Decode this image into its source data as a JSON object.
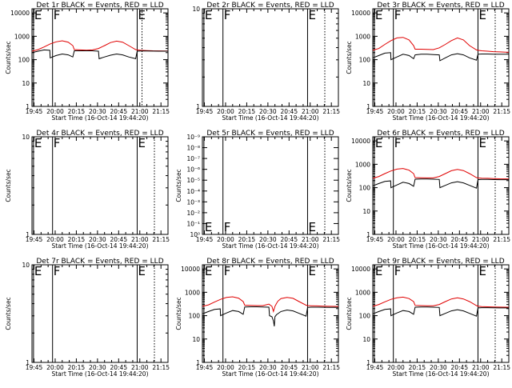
{
  "chart_data": [
    {
      "type": "line",
      "panel": 1,
      "title": "Det 1r BLACK = Events, RED = LLD",
      "xlabel": "Start Time (16-Oct-14 19:44:20)",
      "ylabel": "Counts/sec",
      "x_ticks": [
        "19:45",
        "20:00",
        "20:15",
        "20:30",
        "20:45",
        "21:00",
        "21:15"
      ],
      "xlim_min": [
        0,
        45
      ],
      "y_scale": "log",
      "ylim": [
        1,
        15000
      ],
      "y_ticks": [
        "1",
        "10",
        "100",
        "1000",
        "10000"
      ],
      "markers": [
        {
          "label": "E",
          "t_min": 0.5,
          "style": "solid"
        },
        {
          "label": "F",
          "t_min": 6.8,
          "style": "solid"
        },
        {
          "label": "E",
          "t_min": 34.8,
          "style": "solid"
        },
        {
          "label": "",
          "t_min": 36.4,
          "style": "dotted"
        }
      ],
      "series": [
        {
          "color": "#e00000",
          "x": [
            0,
            2,
            4,
            6,
            8,
            10,
            12,
            13.5,
            14,
            16,
            18,
            20,
            22,
            24,
            26,
            28,
            30,
            32,
            34.3,
            34.8,
            36,
            38,
            40,
            42,
            44,
            45
          ],
          "y": [
            230,
            270,
            350,
            470,
            580,
            640,
            560,
            400,
            270,
            260,
            255,
            260,
            300,
            400,
            540,
            620,
            560,
            400,
            270,
            260,
            250,
            245,
            240,
            238,
            236,
            235
          ]
        },
        {
          "color": "#000000",
          "x": [
            0,
            2,
            4,
            5.9,
            6,
            8,
            10,
            12,
            13.5,
            14,
            16,
            18,
            20,
            22,
            22.2,
            24,
            26,
            28,
            30,
            32,
            34.3,
            34.8,
            36,
            38,
            40,
            42,
            44,
            45
          ],
          "y": [
            200,
            230,
            260,
            250,
            120,
            150,
            175,
            160,
            130,
            240,
            240,
            240,
            240,
            230,
            110,
            130,
            155,
            175,
            160,
            130,
            110,
            230,
            235,
            235,
            232,
            230,
            230,
            230
          ]
        }
      ]
    },
    {
      "type": "line",
      "panel": 2,
      "title": "Det 2r BLACK = Events, RED = LLD",
      "xlabel": "Start Time (16-Oct-14 19:44:20)",
      "ylabel": "",
      "x_ticks": [
        "19:45",
        "20:00",
        "20:15",
        "20:30",
        "20:45",
        "21:00",
        "21:15"
      ],
      "xlim_min": [
        0,
        45
      ],
      "y_scale": "log",
      "ylim": [
        1,
        10
      ],
      "y_ticks": [
        "1",
        "10"
      ],
      "markers": [
        {
          "label": "E",
          "t_min": 0.5,
          "style": "solid"
        },
        {
          "label": "F",
          "t_min": 6.8,
          "style": "solid"
        },
        {
          "label": "E",
          "t_min": 34.8,
          "style": "solid"
        },
        {
          "label": "",
          "t_min": 40.5,
          "style": "dotted"
        }
      ],
      "series": []
    },
    {
      "type": "line",
      "panel": 3,
      "title": "Det 3r BLACK = Events, RED = LLD",
      "xlabel": "Start Time (16-Oct-14 19:44:20)",
      "ylabel": "Counts/sec",
      "x_ticks": [
        "19:45",
        "20:00",
        "20:15",
        "20:30",
        "20:45",
        "21:00",
        "21:15"
      ],
      "xlim_min": [
        0,
        45
      ],
      "y_scale": "log",
      "ylim": [
        1,
        15000
      ],
      "y_ticks": [
        "1",
        "10",
        "100",
        "1000",
        "10000"
      ],
      "markers": [
        {
          "label": "E",
          "t_min": 0.5,
          "style": "solid"
        },
        {
          "label": "F",
          "t_min": 6.8,
          "style": "solid"
        },
        {
          "label": "E",
          "t_min": 34.8,
          "style": "solid"
        },
        {
          "label": "",
          "t_min": 40.5,
          "style": "dotted"
        }
      ],
      "series": [
        {
          "color": "#e00000",
          "x": [
            0,
            2,
            4,
            6,
            8,
            10,
            12,
            13.5,
            14,
            16,
            18,
            20,
            22,
            24,
            26,
            28,
            30,
            32,
            34.3,
            34.8,
            36,
            38,
            40,
            42,
            44,
            45
          ],
          "y": [
            250,
            300,
            450,
            650,
            850,
            900,
            700,
            400,
            280,
            280,
            275,
            270,
            320,
            450,
            650,
            850,
            700,
            400,
            260,
            250,
            240,
            230,
            220,
            215,
            210,
            210
          ]
        },
        {
          "color": "#000000",
          "x": [
            0,
            2,
            4,
            5.9,
            6,
            8,
            10,
            12,
            13.5,
            14,
            16,
            18,
            20,
            22,
            22.2,
            24,
            26,
            28,
            30,
            32,
            34.3,
            34.8,
            36,
            38,
            40,
            42,
            44,
            45
          ],
          "y": [
            120,
            150,
            190,
            200,
            100,
            130,
            170,
            150,
            110,
            160,
            170,
            170,
            165,
            160,
            90,
            120,
            160,
            180,
            160,
            120,
            95,
            170,
            175,
            175,
            172,
            170,
            170,
            170
          ]
        }
      ]
    },
    {
      "type": "line",
      "panel": 4,
      "title": "Det 4r BLACK = Events, RED = LLD",
      "xlabel": "Start Time (16-Oct-14 19:44:20)",
      "ylabel": "Counts/sec",
      "x_ticks": [
        "19:45",
        "20:00",
        "20:15",
        "20:30",
        "20:45",
        "21:00",
        "21:15"
      ],
      "xlim_min": [
        0,
        45
      ],
      "y_scale": "log",
      "ylim": [
        1,
        10
      ],
      "y_ticks": [
        "1",
        "10"
      ],
      "markers": [
        {
          "label": "E",
          "t_min": 0.5,
          "style": "solid"
        },
        {
          "label": "F",
          "t_min": 6.8,
          "style": "solid"
        },
        {
          "label": "E",
          "t_min": 34.8,
          "style": "solid"
        },
        {
          "label": "",
          "t_min": 40.5,
          "style": "dotted"
        }
      ],
      "series": []
    },
    {
      "type": "line",
      "panel": 5,
      "title": "Det 5r BLACK = Events, RED = LLD",
      "xlabel": "Start Time (16-Oct-14 19:44:20)",
      "ylabel": "Counts/sec",
      "x_ticks": [
        "19:45",
        "20:00",
        "20:15",
        "20:30",
        "20:45",
        "21:00",
        "21:15"
      ],
      "xlim_min": [
        0,
        45
      ],
      "y_scale": "log",
      "ylim": [
        1,
        1e-09
      ],
      "y_ticks": [
        "10⁰",
        "10⁻¹",
        "10⁻²",
        "10⁻³",
        "10⁻⁴",
        "10⁻⁵",
        "10⁻⁶",
        "10⁻⁷",
        "10⁻⁸",
        "10⁻⁹"
      ],
      "markers": [
        {
          "label": "E",
          "t_min": 0.5,
          "style": "solid"
        },
        {
          "label": "F",
          "t_min": 6.8,
          "style": "solid"
        },
        {
          "label": "E",
          "t_min": 34.8,
          "style": "solid"
        },
        {
          "label": "",
          "t_min": 40.5,
          "style": "dotted"
        }
      ],
      "series": []
    },
    {
      "type": "line",
      "panel": 6,
      "title": "Det 6r BLACK = Events, RED = LLD",
      "xlabel": "Start Time (16-Oct-14 19:44:20)",
      "ylabel": "Counts/sec",
      "x_ticks": [
        "19:45",
        "20:00",
        "20:15",
        "20:30",
        "20:45",
        "21:00",
        "21:15"
      ],
      "xlim_min": [
        0,
        45
      ],
      "y_scale": "log",
      "ylim": [
        1,
        15000
      ],
      "y_ticks": [
        "1",
        "10",
        "100",
        "1000",
        "10000"
      ],
      "markers": [
        {
          "label": "E",
          "t_min": 0.5,
          "style": "solid"
        },
        {
          "label": "F",
          "t_min": 6.8,
          "style": "solid"
        },
        {
          "label": "E",
          "t_min": 34.8,
          "style": "solid"
        },
        {
          "label": "",
          "t_min": 40.5,
          "style": "dotted"
        }
      ],
      "series": [
        {
          "color": "#e00000",
          "x": [
            0,
            2,
            4,
            6,
            8,
            10,
            12,
            13.5,
            14,
            16,
            18,
            20,
            22,
            24,
            26,
            28,
            30,
            32,
            34.3,
            34.8,
            36,
            38,
            40,
            42,
            44,
            45
          ],
          "y": [
            250,
            300,
            400,
            520,
            620,
            660,
            560,
            400,
            270,
            265,
            260,
            260,
            300,
            400,
            530,
            600,
            540,
            400,
            270,
            260,
            255,
            250,
            245,
            240,
            238,
            235
          ]
        },
        {
          "color": "#000000",
          "x": [
            0,
            2,
            4,
            5.9,
            6,
            8,
            10,
            12,
            13.5,
            14,
            16,
            18,
            20,
            22,
            22.2,
            24,
            26,
            28,
            30,
            32,
            34.3,
            34.8,
            36,
            38,
            40,
            42,
            44,
            45
          ],
          "y": [
            120,
            150,
            185,
            195,
            100,
            130,
            170,
            150,
            115,
            230,
            235,
            235,
            230,
            225,
            100,
            125,
            160,
            180,
            160,
            125,
            95,
            220,
            225,
            225,
            222,
            220,
            220,
            220
          ]
        }
      ]
    },
    {
      "type": "line",
      "panel": 7,
      "title": "Det 7r BLACK = Events, RED = LLD",
      "xlabel": "Start Time (16-Oct-14 19:44:20)",
      "ylabel": "Counts/sec",
      "x_ticks": [
        "19:45",
        "20:00",
        "20:15",
        "20:30",
        "20:45",
        "21:00",
        "21:15"
      ],
      "xlim_min": [
        0,
        45
      ],
      "y_scale": "log",
      "ylim": [
        1,
        10
      ],
      "y_ticks": [
        "1",
        "10"
      ],
      "markers": [
        {
          "label": "E",
          "t_min": 0.5,
          "style": "solid"
        },
        {
          "label": "F",
          "t_min": 6.8,
          "style": "solid"
        },
        {
          "label": "E",
          "t_min": 34.8,
          "style": "solid"
        },
        {
          "label": "",
          "t_min": 40.5,
          "style": "dotted"
        }
      ],
      "series": []
    },
    {
      "type": "line",
      "panel": 8,
      "title": "Det 8r BLACK = Events, RED = LLD",
      "xlabel": "Start Time (16-Oct-14 19:44:20)",
      "ylabel": "Counts/sec",
      "x_ticks": [
        "19:45",
        "20:00",
        "20:15",
        "20:30",
        "20:45",
        "21:00",
        "21:15"
      ],
      "xlim_min": [
        0,
        45
      ],
      "y_scale": "log",
      "ylim": [
        1,
        15000
      ],
      "y_ticks": [
        "1",
        "10",
        "100",
        "1000",
        "10000"
      ],
      "markers": [
        {
          "label": "E",
          "t_min": 0.5,
          "style": "solid"
        },
        {
          "label": "F",
          "t_min": 6.8,
          "style": "solid"
        },
        {
          "label": "E",
          "t_min": 34.8,
          "style": "solid"
        },
        {
          "label": "",
          "t_min": 40.5,
          "style": "dotted"
        }
      ],
      "series": [
        {
          "color": "#e00000",
          "x": [
            0,
            2,
            4,
            6,
            8,
            10,
            12,
            13.5,
            14,
            16,
            18,
            20,
            22,
            23,
            23.5,
            24,
            24.5,
            25,
            26,
            28,
            30,
            32,
            34.3,
            34.8,
            36,
            38,
            40,
            42,
            44,
            45
          ],
          "y": [
            250,
            290,
            380,
            500,
            600,
            640,
            560,
            400,
            280,
            275,
            270,
            270,
            310,
            250,
            150,
            250,
            330,
            420,
            540,
            600,
            550,
            400,
            280,
            270,
            265,
            260,
            255,
            250,
            248,
            245
          ]
        },
        {
          "color": "#000000",
          "x": [
            0,
            2,
            4,
            5.9,
            6,
            8,
            10,
            12,
            13.5,
            14,
            16,
            18,
            20,
            22,
            22.2,
            23,
            23.5,
            23.8,
            24,
            24.5,
            26,
            28,
            30,
            32,
            34.3,
            34.8,
            36,
            38,
            40,
            42,
            44,
            45
          ],
          "y": [
            120,
            150,
            185,
            195,
            100,
            130,
            165,
            150,
            115,
            235,
            240,
            240,
            235,
            230,
            100,
            90,
            60,
            35,
            90,
            110,
            150,
            175,
            160,
            125,
            95,
            225,
            230,
            230,
            228,
            225,
            225,
            225
          ]
        }
      ]
    },
    {
      "type": "line",
      "panel": 9,
      "title": "Det 9r BLACK = Events, RED = LLD",
      "xlabel": "Start Time (16-Oct-14 19:44:20)",
      "ylabel": "Counts/sec",
      "x_ticks": [
        "19:45",
        "20:00",
        "20:15",
        "20:30",
        "20:45",
        "21:00",
        "21:15"
      ],
      "xlim_min": [
        0,
        45
      ],
      "y_scale": "log",
      "ylim": [
        1,
        15000
      ],
      "y_ticks": [
        "1",
        "10",
        "100",
        "1000",
        "10000"
      ],
      "markers": [
        {
          "label": "E",
          "t_min": 0.5,
          "style": "solid"
        },
        {
          "label": "F",
          "t_min": 6.8,
          "style": "solid"
        },
        {
          "label": "E",
          "t_min": 34.8,
          "style": "solid"
        },
        {
          "label": "",
          "t_min": 40.5,
          "style": "dotted"
        }
      ],
      "series": [
        {
          "color": "#e00000",
          "x": [
            0,
            2,
            4,
            6,
            8,
            10,
            12,
            13.5,
            14,
            16,
            18,
            20,
            22,
            24,
            26,
            28,
            30,
            32,
            34.3,
            34.8,
            36,
            38,
            40,
            42,
            44,
            45
          ],
          "y": [
            250,
            300,
            390,
            500,
            580,
            620,
            540,
            400,
            275,
            270,
            265,
            265,
            300,
            400,
            520,
            580,
            520,
            400,
            270,
            255,
            245,
            240,
            235,
            232,
            230,
            228
          ]
        },
        {
          "color": "#000000",
          "x": [
            0,
            2,
            4,
            5.9,
            6,
            8,
            10,
            12,
            13.5,
            14,
            16,
            18,
            20,
            22,
            22.2,
            24,
            26,
            28,
            30,
            32,
            34.3,
            34.8,
            36,
            38,
            40,
            42,
            44,
            45
          ],
          "y": [
            120,
            150,
            185,
            195,
            100,
            130,
            165,
            150,
            115,
            230,
            235,
            235,
            230,
            225,
            100,
            125,
            160,
            180,
            160,
            125,
            95,
            215,
            220,
            220,
            218,
            215,
            215,
            215
          ]
        }
      ]
    }
  ]
}
